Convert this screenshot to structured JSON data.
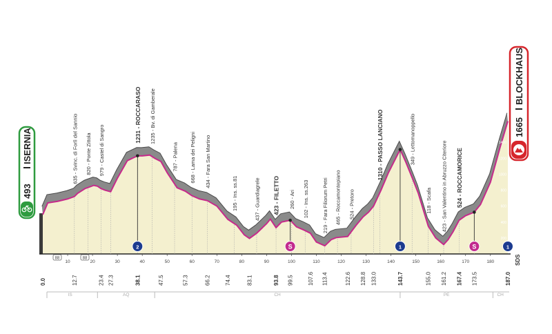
{
  "chart_data": {
    "type": "area",
    "start": {
      "altitude": "493",
      "name": "ISERNIA"
    },
    "finish": {
      "altitude": "1665",
      "name": "BLOCKHAUS"
    },
    "ylim": [
      0,
      1800
    ],
    "y_ticks": [
      "200",
      "400",
      "600",
      "800",
      "1000",
      "1200",
      "1400",
      "1600"
    ],
    "xlim": [
      0,
      187
    ],
    "x_ticks": [
      10,
      20,
      30,
      40,
      50,
      60,
      70,
      80,
      90,
      100,
      110,
      120,
      130,
      140,
      150,
      160,
      170,
      180
    ],
    "profile": [
      [
        0,
        493
      ],
      [
        2,
        640
      ],
      [
        6,
        660
      ],
      [
        10,
        690
      ],
      [
        12.7,
        720
      ],
      [
        14,
        760
      ],
      [
        17,
        820
      ],
      [
        20.5,
        860
      ],
      [
        22,
        850
      ],
      [
        23.4,
        820
      ],
      [
        25,
        800
      ],
      [
        27.3,
        780
      ],
      [
        30,
        950
      ],
      [
        34,
        1170
      ],
      [
        38.1,
        1231
      ],
      [
        40,
        1230
      ],
      [
        43,
        1240
      ],
      [
        45,
        1200
      ],
      [
        47.5,
        1160
      ],
      [
        50,
        1020
      ],
      [
        54,
        830
      ],
      [
        57.3,
        787
      ],
      [
        60,
        730
      ],
      [
        63,
        690
      ],
      [
        66.2,
        668
      ],
      [
        70,
        600
      ],
      [
        74.4,
        434
      ],
      [
        78,
        360
      ],
      [
        81,
        240
      ],
      [
        83.1,
        195
      ],
      [
        86,
        260
      ],
      [
        90,
        380
      ],
      [
        91.5,
        437
      ],
      [
        93.8,
        330
      ],
      [
        96,
        400
      ],
      [
        99.5,
        423
      ],
      [
        102,
        340
      ],
      [
        105,
        300
      ],
      [
        107.6,
        260
      ],
      [
        110,
        150
      ],
      [
        113.4,
        102
      ],
      [
        116,
        180
      ],
      [
        118,
        205
      ],
      [
        122.6,
        219
      ],
      [
        126,
        360
      ],
      [
        128.8,
        465
      ],
      [
        131,
        524
      ],
      [
        133,
        600
      ],
      [
        136,
        800
      ],
      [
        139,
        1020
      ],
      [
        143.7,
        1310
      ],
      [
        146,
        1150
      ],
      [
        149,
        920
      ],
      [
        151,
        760
      ],
      [
        155,
        349
      ],
      [
        158,
        200
      ],
      [
        161.2,
        118
      ],
      [
        163,
        180
      ],
      [
        165,
        280
      ],
      [
        167.4,
        423
      ],
      [
        170,
        480
      ],
      [
        173.5,
        524
      ],
      [
        176,
        620
      ],
      [
        180,
        900
      ],
      [
        184,
        1350
      ],
      [
        187,
        1665
      ]
    ],
    "points": [
      {
        "km": "0.0",
        "alt": "493",
        "name": "ISERNIA",
        "at": 0,
        "bold": true,
        "label": false
      },
      {
        "km": "12.7",
        "alt": "635",
        "name": "Svinc. di Forlì del Sannio",
        "at": 12.7,
        "bold": false,
        "label": true
      },
      {
        "km": "",
        "alt": "820",
        "name": "Ponte Zittola",
        "at": 18.2,
        "bold": false,
        "label": true
      },
      {
        "km": "23.4",
        "alt": "979",
        "name": "Castel di Sangro",
        "at": 23.4,
        "bold": false,
        "label": true
      },
      {
        "km": "27.3",
        "alt": "",
        "name": "",
        "at": 27.3,
        "bold": false,
        "label": false
      },
      {
        "km": "38.1",
        "alt": "1231",
        "name": "ROCCARASO",
        "at": 38.1,
        "bold": true,
        "label": true
      },
      {
        "km": "",
        "alt": "1235",
        "name": "Bv. di Gamberale",
        "at": 44,
        "bold": false,
        "label": true
      },
      {
        "km": "47.5",
        "alt": "787",
        "name": "Palena",
        "at": 53,
        "bold": false,
        "label": true
      },
      {
        "km": "57.3",
        "alt": "668",
        "name": "Lama dei Peligni",
        "at": 60,
        "bold": false,
        "label": true
      },
      {
        "km": "66.2",
        "alt": "434",
        "name": "Fara San Martino",
        "at": 66.2,
        "bold": false,
        "label": true
      },
      {
        "km": "74.4",
        "alt": "195",
        "name": "Ins. ss.81",
        "at": 77,
        "bold": false,
        "label": true
      },
      {
        "km": "83.1",
        "alt": "437",
        "name": "Guardiagrele",
        "at": 86,
        "bold": false,
        "label": true
      },
      {
        "km": "93.8",
        "alt": "423",
        "name": "FILETTO",
        "at": 93.8,
        "bold": true,
        "label": true
      },
      {
        "km": "99.5",
        "alt": "260",
        "name": "Ari",
        "at": 100,
        "bold": false,
        "label": true
      },
      {
        "km": "107.6",
        "alt": "102",
        "name": "Ins. ss.263",
        "at": 105.5,
        "bold": false,
        "label": true
      },
      {
        "km": "113.4",
        "alt": "219",
        "name": "Fara Filiorum Petri",
        "at": 113.4,
        "bold": false,
        "label": true
      },
      {
        "km": "122.6",
        "alt": "465",
        "name": "Roccamontepiano",
        "at": 118.5,
        "bold": false,
        "label": true
      },
      {
        "km": "128.8",
        "alt": "524",
        "name": "Pretoro",
        "at": 124,
        "bold": false,
        "label": true
      },
      {
        "km": "133.0",
        "alt": "",
        "name": "",
        "at": 133,
        "bold": false,
        "label": false
      },
      {
        "km": "143.7",
        "alt": "1310",
        "name": "PASSO LANCIANO",
        "at": 135.5,
        "bold": true,
        "label": true
      },
      {
        "km": "",
        "alt": "349",
        "name": "Lettomanoppello",
        "at": 148.5,
        "bold": false,
        "label": true
      },
      {
        "km": "155.0",
        "alt": "118",
        "name": "Scafa",
        "at": 155,
        "bold": false,
        "label": true
      },
      {
        "km": "161.2",
        "alt": "423",
        "name": "San Valentino in Abruzzo Citeriore",
        "at": 161.2,
        "bold": false,
        "label": true
      },
      {
        "km": "167.4",
        "alt": "524",
        "name": "ROCCAMORICE",
        "at": 167.4,
        "bold": true,
        "label": true
      },
      {
        "km": "173.5",
        "alt": "",
        "name": "",
        "at": 173.5,
        "bold": false,
        "label": false
      },
      {
        "km": "187.0",
        "alt": "1665",
        "name": "BLOCKHAUS",
        "at": 187,
        "bold": true,
        "label": false
      }
    ],
    "markers": [
      {
        "type": "gpm",
        "glyph": "2",
        "km": 38.1,
        "color": "#1c3b8f"
      },
      {
        "type": "sprint",
        "glyph": "S",
        "km": 99.5,
        "color": "#c22b8e"
      },
      {
        "type": "gpm",
        "glyph": "1",
        "km": 143.7,
        "color": "#1c3b8f"
      },
      {
        "type": "sprint",
        "glyph": "S",
        "km": 173.5,
        "color": "#c22b8e"
      },
      {
        "type": "gpm",
        "glyph": "1",
        "km": 187,
        "color": "#1c3b8f"
      }
    ],
    "regions": [
      {
        "name": "IS",
        "from": 0,
        "to": 22
      },
      {
        "name": "AQ",
        "from": 22,
        "to": 45
      },
      {
        "name": "CH",
        "from": 45,
        "to": 143.7
      },
      {
        "name": "PE",
        "from": 143.7,
        "to": 181
      },
      {
        "name": "CH",
        "from": 181,
        "to": 187
      }
    ],
    "small_marks": [
      "88",
      "88"
    ],
    "vertical_note": "SDS",
    "colors": {
      "start_badge": "#2e9b3f",
      "finish_badge": "#d6262c",
      "profile_fill": "#f4f0cf",
      "mountain": "#8a8a8a",
      "road": "#c62a8b"
    }
  }
}
